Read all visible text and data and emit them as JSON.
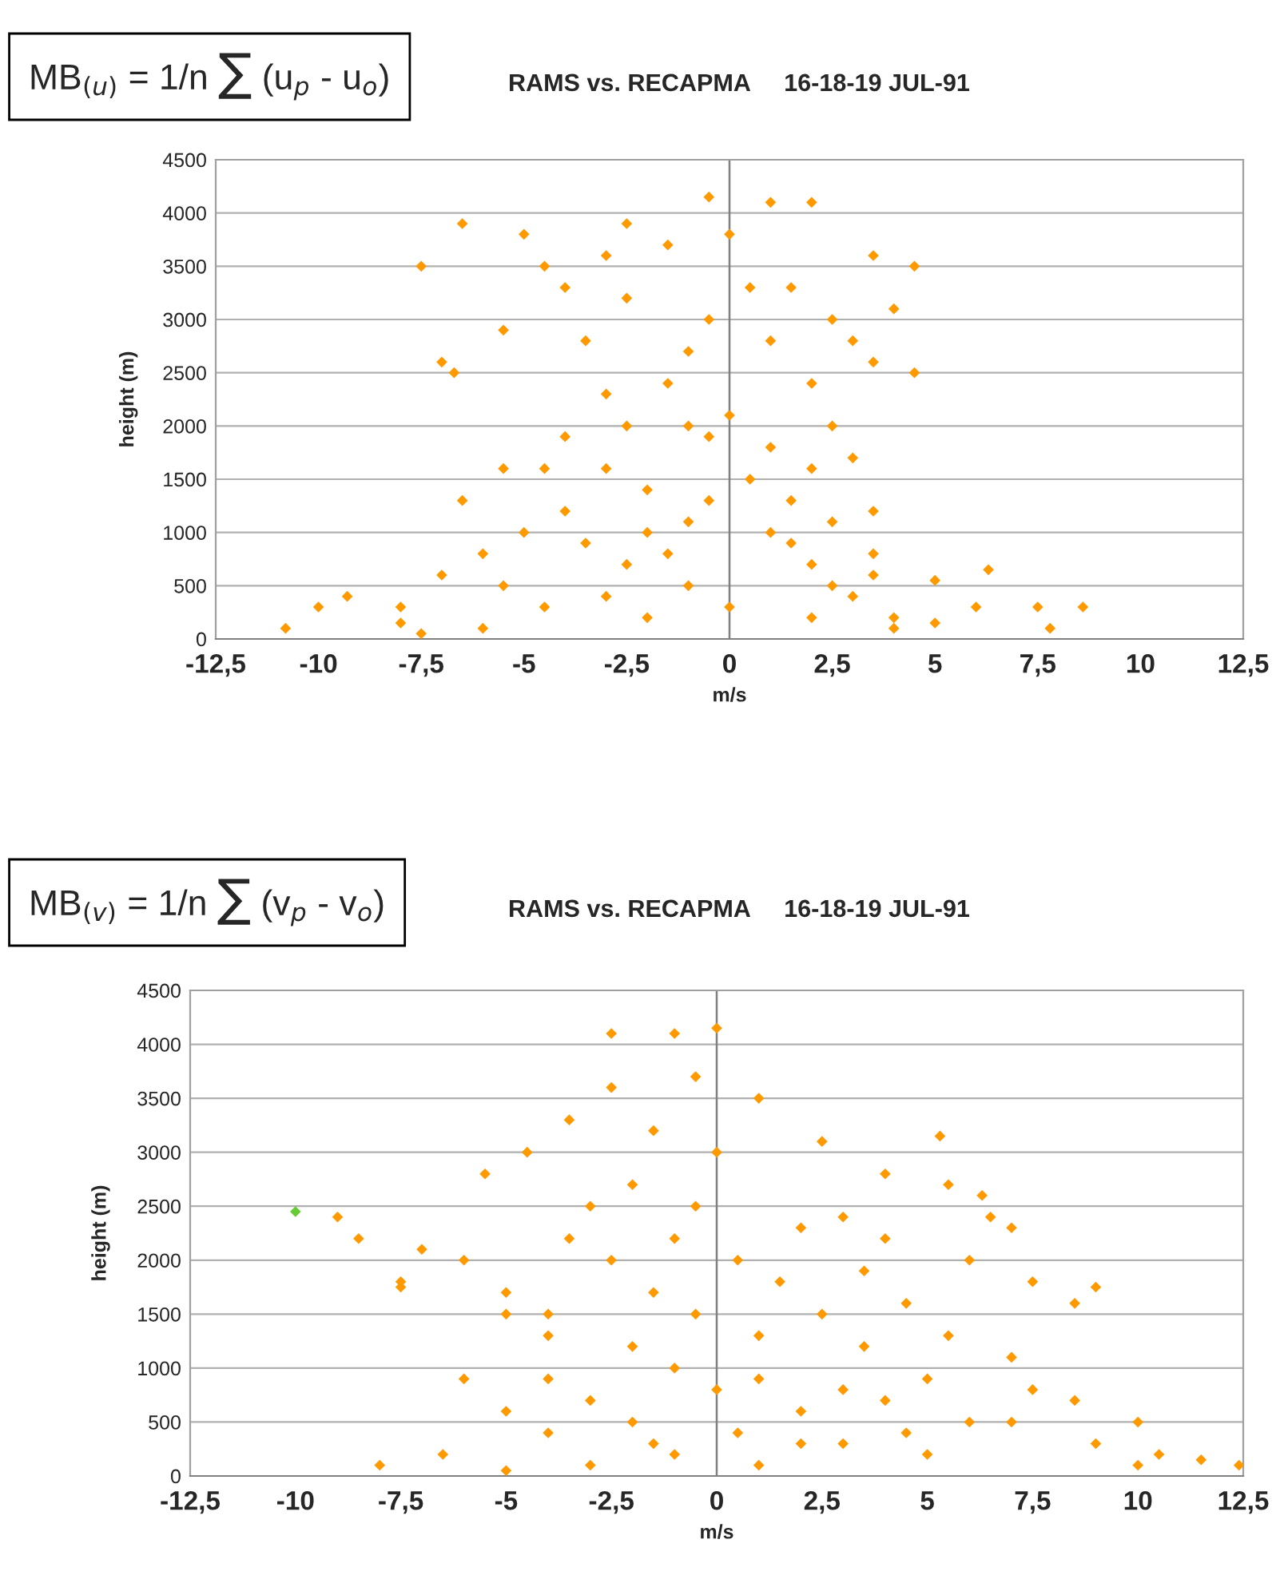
{
  "chart_data": [
    {
      "type": "scatter",
      "title": "RAMS vs. RECAPMA     16-18-19 JUL-91",
      "annotations": [
        "MB$_{(u)}$ = 1/n ∑ (u$_{p}$ - u$_{o}$)"
      ],
      "xlabel": "m/s",
      "ylabel": "height (m)",
      "grid": "y",
      "marker": "diamond",
      "legend": false,
      "xlim": [
        -12.5,
        12.5
      ],
      "ylim": [
        0,
        4500
      ],
      "xticks": [
        {
          "value": -12.5,
          "label": "-12,5"
        },
        -10,
        {
          "value": -7.5,
          "label": "-7,5"
        },
        -5,
        {
          "value": -2.5,
          "label": "-2,5"
        },
        0,
        {
          "value": 2.5,
          "label": "2,5"
        },
        5,
        {
          "value": 7.5,
          "label": "7,5"
        },
        10,
        {
          "value": 12.5,
          "label": "12,5"
        }
      ],
      "yticks": [
        0,
        500,
        1000,
        1500,
        2000,
        2500,
        3000,
        3500,
        4000,
        4500
      ],
      "series": [
        {
          "color": "#ff9900",
          "x": [
            -10.8,
            -10,
            -9.3,
            -8,
            -7.5,
            -7,
            -6,
            -5,
            -6.5,
            -5.5,
            -4,
            -3,
            -7,
            -6.7,
            -5.5,
            -7.5,
            -6.5,
            -5,
            -4.5,
            -4,
            -2.5,
            -1.5,
            -0.5,
            1,
            2,
            0,
            1.5,
            2.5,
            3.5,
            4,
            4.5,
            3,
            4.5,
            3.5,
            2,
            0,
            -0.5,
            -1,
            1,
            2,
            3,
            3.5,
            2.5,
            1,
            -1,
            -2,
            -3,
            -4,
            -3.5,
            -2.5,
            -1,
            0,
            2,
            4,
            5,
            6.3,
            5,
            7.5,
            8.6,
            7.8,
            6,
            3.5,
            2,
            3.5,
            1.5,
            -1.5,
            -3,
            -4.5,
            -5.5,
            -8,
            -2,
            0.5,
            -0.5,
            -2.5,
            -1.5,
            -3.5,
            -2.5,
            -1,
            1,
            0.5,
            -4.5,
            -2,
            1.5,
            2.5,
            -6,
            4,
            -3,
            -0.5,
            2.5,
            3
          ],
          "values": [
            100,
            300,
            400,
            300,
            50,
            600,
            800,
            1000,
            1300,
            1600,
            1900,
            2300,
            2600,
            2500,
            2900,
            3500,
            3900,
            3800,
            3500,
            3300,
            3900,
            3700,
            4150,
            4100,
            4100,
            3800,
            3300,
            3000,
            3600,
            3100,
            3500,
            2800,
            2500,
            2600,
            2400,
            2100,
            1900,
            2000,
            1800,
            1600,
            1700,
            1200,
            1100,
            1000,
            1100,
            1400,
            1600,
            1200,
            900,
            700,
            500,
            300,
            200,
            200,
            150,
            650,
            550,
            300,
            300,
            100,
            300,
            600,
            700,
            800,
            900,
            800,
            400,
            300,
            500,
            150,
            200,
            1500,
            1300,
            2000,
            2400,
            2800,
            3200,
            2700,
            2800,
            3300,
            1600,
            1000,
            1300,
            500,
            100,
            100,
            3600,
            3000,
            2000,
            400
          ]
        }
      ]
    },
    {
      "type": "scatter",
      "title": "RAMS vs. RECAPMA     16-18-19 JUL-91",
      "annotations": [
        "MB$_{(v)}$ = 1/n ∑ (v$_{p}$ - v$_{o}$)"
      ],
      "xlabel": "m/s",
      "ylabel": "height (m)",
      "grid": "y",
      "marker": "diamond",
      "legend": false,
      "xlim": [
        -12.5,
        12.5
      ],
      "ylim": [
        0,
        4500
      ],
      "xticks": [
        {
          "value": -12.5,
          "label": "-12,5"
        },
        -10,
        {
          "value": -7.5,
          "label": "-7,5"
        },
        -5,
        {
          "value": -2.5,
          "label": "-2,5"
        },
        0,
        {
          "value": 2.5,
          "label": "2,5"
        },
        5,
        {
          "value": 7.5,
          "label": "7,5"
        },
        10,
        {
          "value": 12.5,
          "label": "12,5"
        }
      ],
      "yticks": [
        0,
        500,
        1000,
        1500,
        2000,
        2500,
        3000,
        3500,
        4000,
        4500
      ],
      "series": [
        {
          "color": "#ff9900",
          "x": [
            -8,
            -7.5,
            -7,
            -6,
            -5,
            -4,
            -5.5,
            -4.5,
            -3.5,
            -2.5,
            -2.5,
            -1,
            0,
            -0.5,
            -1.5,
            -2,
            -3,
            -3.5,
            -5,
            -4,
            -6,
            -5,
            -4,
            -6.5,
            -3,
            -1,
            1,
            3,
            5,
            7,
            9,
            10.5,
            11.5,
            12.4,
            8.5,
            7,
            5.5,
            6,
            6.3,
            7.5,
            8.5,
            9,
            7,
            5.3,
            4,
            3,
            2.5,
            1,
            0,
            -0.5,
            0.5,
            1.5,
            2.5,
            3.5,
            5,
            4,
            2,
            0,
            -1,
            -2,
            -1.5,
            -2.5,
            -0.5,
            1,
            3,
            6,
            4.5,
            2,
            -2,
            -3,
            -4,
            -7.5,
            -9,
            -8.5,
            -1,
            2,
            4.5,
            5.5,
            6.5,
            3.5,
            1,
            -1.5,
            0.5,
            7.5,
            10,
            10,
            -5,
            4
          ],
          "values": [
            100,
            1800,
            2100,
            2000,
            1700,
            1500,
            2800,
            3000,
            3300,
            3600,
            4100,
            4100,
            4150,
            3700,
            3200,
            2700,
            2500,
            2200,
            1500,
            1300,
            900,
            600,
            400,
            200,
            100,
            200,
            100,
            300,
            200,
            500,
            300,
            200,
            150,
            100,
            700,
            1100,
            1300,
            2000,
            2600,
            1800,
            1600,
            1750,
            2300,
            3150,
            2800,
            2400,
            3100,
            3500,
            3000,
            2500,
            2000,
            1800,
            1500,
            1200,
            900,
            700,
            600,
            800,
            1000,
            1200,
            1700,
            2000,
            1500,
            1300,
            800,
            500,
            400,
            300,
            500,
            700,
            900,
            1750,
            2400,
            2200,
            2200,
            2300,
            1600,
            2700,
            2400,
            1900,
            900,
            300,
            400,
            800,
            500,
            100,
            50,
            2200
          ]
        },
        {
          "color": "#66cc33",
          "x": [
            -10
          ],
          "values": [
            2450
          ]
        }
      ]
    }
  ]
}
